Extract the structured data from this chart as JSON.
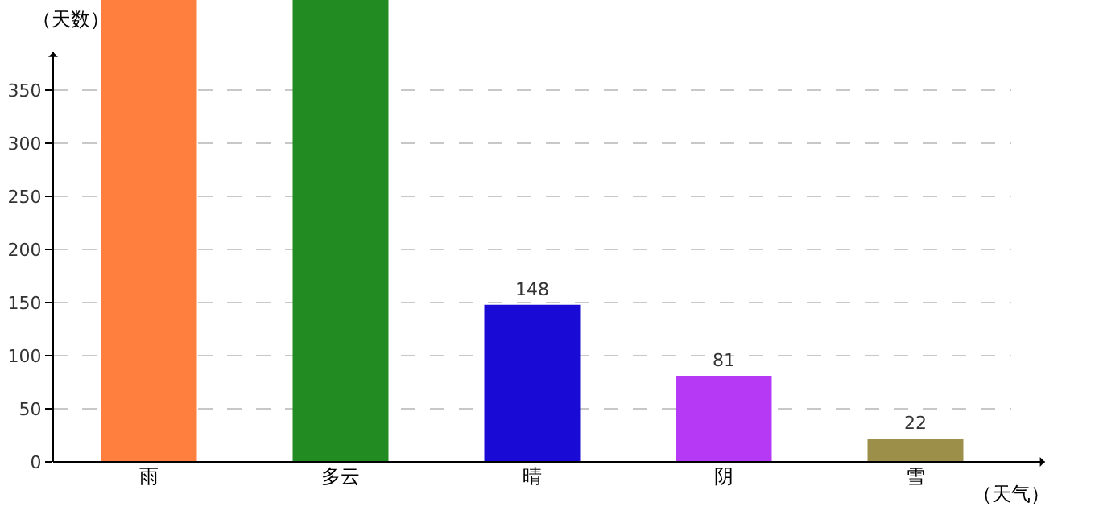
{
  "chart_data": {
    "type": "bar",
    "categories": [
      "雨",
      "多云",
      "晴",
      "阴",
      "雪"
    ],
    "values": [
      435,
      435,
      148,
      81,
      22
    ],
    "colors": [
      "#ff7f3f",
      "#228b22",
      "#1a0ad6",
      "#b63af5",
      "#9c8f4a"
    ],
    "value_labels": [
      null,
      null,
      "148",
      "81",
      "22"
    ],
    "ylabel": "（天数）",
    "xlabel": "（天气）",
    "ylim": [
      0,
      435
    ],
    "yticks": [
      0,
      50,
      100,
      150,
      200,
      250,
      300,
      350
    ],
    "grid": "y",
    "legend": false
  }
}
